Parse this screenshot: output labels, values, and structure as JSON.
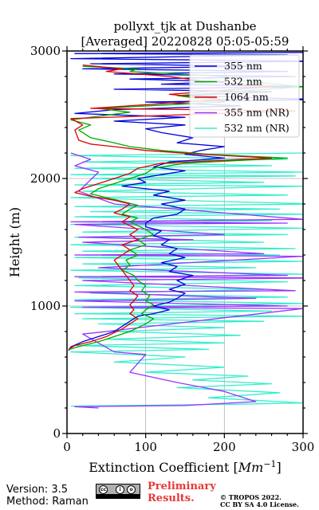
{
  "chart_data": {
    "type": "line",
    "title_lines": [
      "pollyxt_tjk at Dushanbe",
      "[Averaged] 20220828 05:05-05:59"
    ],
    "xlabel_main": "Extinction Coefficient [",
    "xlabel_unit": "Mm",
    "xlabel_exp": "−1",
    "xlabel_close": "]",
    "ylabel": "Height (m)",
    "xlim": [
      0,
      300
    ],
    "ylim": [
      0,
      3000
    ],
    "xticks": [
      0,
      100,
      200,
      300
    ],
    "yticks": [
      0,
      1000,
      2000,
      3000
    ],
    "grid": true,
    "legend_position": "top-right",
    "series": [
      {
        "name": "355 nm",
        "color": "#0000dd",
        "points": [
          [
            350,
            2990
          ],
          [
            10,
            2980
          ],
          [
            280,
            2970
          ],
          [
            5,
            2940
          ],
          [
            320,
            2920
          ],
          [
            30,
            2900
          ],
          [
            240,
            2880
          ],
          [
            20,
            2860
          ],
          [
            280,
            2840
          ],
          [
            60,
            2820
          ],
          [
            290,
            2800
          ],
          [
            80,
            2780
          ],
          [
            200,
            2760
          ],
          [
            120,
            2740
          ],
          [
            300,
            2720
          ],
          [
            60,
            2700
          ],
          [
            260,
            2680
          ],
          [
            150,
            2650
          ],
          [
            320,
            2620
          ],
          [
            100,
            2600
          ],
          [
            220,
            2570
          ],
          [
            60,
            2540
          ],
          [
            10,
            2510
          ],
          [
            150,
            2480
          ],
          [
            60,
            2450
          ],
          [
            150,
            2420
          ],
          [
            100,
            2390
          ],
          [
            120,
            2360
          ],
          [
            160,
            2320
          ],
          [
            140,
            2280
          ],
          [
            200,
            2250
          ],
          [
            170,
            2220
          ],
          [
            150,
            2190
          ],
          [
            200,
            2160
          ],
          [
            130,
            2130
          ],
          [
            110,
            2090
          ],
          [
            150,
            2060
          ],
          [
            120,
            2030
          ],
          [
            90,
            2000
          ],
          [
            100,
            1970
          ],
          [
            70,
            1940
          ],
          [
            130,
            1900
          ],
          [
            110,
            1870
          ],
          [
            150,
            1830
          ],
          [
            120,
            1800
          ],
          [
            150,
            1760
          ],
          [
            140,
            1720
          ],
          [
            110,
            1690
          ],
          [
            100,
            1650
          ],
          [
            100,
            1620
          ],
          [
            120,
            1590
          ],
          [
            110,
            1550
          ],
          [
            130,
            1520
          ],
          [
            120,
            1480
          ],
          [
            140,
            1450
          ],
          [
            130,
            1410
          ],
          [
            150,
            1380
          ],
          [
            120,
            1340
          ],
          [
            140,
            1310
          ],
          [
            130,
            1270
          ],
          [
            160,
            1240
          ],
          [
            140,
            1200
          ],
          [
            150,
            1170
          ],
          [
            130,
            1130
          ],
          [
            150,
            1100
          ],
          [
            140,
            1060
          ],
          [
            130,
            1030
          ],
          [
            110,
            1000
          ],
          [
            130,
            970
          ],
          [
            110,
            940
          ],
          [
            90,
            920
          ],
          [
            80,
            880
          ],
          [
            70,
            840
          ],
          [
            60,
            800
          ],
          [
            40,
            760
          ],
          [
            20,
            720
          ],
          [
            5,
            680
          ],
          [
            2,
            650
          ]
        ]
      },
      {
        "name": "532 nm",
        "color": "#00aa00",
        "points": [
          [
            20,
            2880
          ],
          [
            90,
            2860
          ],
          [
            80,
            2840
          ],
          [
            200,
            2800
          ],
          [
            230,
            2760
          ],
          [
            300,
            2720
          ],
          [
            140,
            2650
          ],
          [
            200,
            2600
          ],
          [
            40,
            2550
          ],
          [
            80,
            2520
          ],
          [
            5,
            2460
          ],
          [
            30,
            2420
          ],
          [
            15,
            2380
          ],
          [
            30,
            2320
          ],
          [
            60,
            2280
          ],
          [
            80,
            2250
          ],
          [
            120,
            2220
          ],
          [
            180,
            2190
          ],
          [
            280,
            2160
          ],
          [
            150,
            2120
          ],
          [
            110,
            2080
          ],
          [
            100,
            2040
          ],
          [
            80,
            2000
          ],
          [
            60,
            1960
          ],
          [
            40,
            1920
          ],
          [
            30,
            1880
          ],
          [
            50,
            1850
          ],
          [
            70,
            1820
          ],
          [
            90,
            1790
          ],
          [
            80,
            1760
          ],
          [
            70,
            1720
          ],
          [
            90,
            1690
          ],
          [
            80,
            1660
          ],
          [
            90,
            1630
          ],
          [
            100,
            1600
          ],
          [
            110,
            1560
          ],
          [
            90,
            1520
          ],
          [
            100,
            1480
          ],
          [
            80,
            1440
          ],
          [
            90,
            1400
          ],
          [
            75,
            1360
          ],
          [
            80,
            1320
          ],
          [
            70,
            1280
          ],
          [
            85,
            1240
          ],
          [
            90,
            1200
          ],
          [
            100,
            1160
          ],
          [
            95,
            1120
          ],
          [
            105,
            1080
          ],
          [
            100,
            1040
          ],
          [
            110,
            1010
          ],
          [
            100,
            970
          ],
          [
            95,
            940
          ],
          [
            110,
            900
          ],
          [
            100,
            860
          ],
          [
            90,
            830
          ],
          [
            80,
            800
          ],
          [
            60,
            760
          ],
          [
            40,
            720
          ],
          [
            20,
            690
          ],
          [
            3,
            660
          ]
        ]
      },
      {
        "name": "1064 nm",
        "color": "#dd0000",
        "points": [
          [
            20,
            2890
          ],
          [
            70,
            2860
          ],
          [
            50,
            2840
          ],
          [
            130,
            2800
          ],
          [
            180,
            2760
          ],
          [
            260,
            2720
          ],
          [
            130,
            2660
          ],
          [
            200,
            2620
          ],
          [
            30,
            2550
          ],
          [
            290,
            2530
          ],
          [
            5,
            2470
          ],
          [
            20,
            2420
          ],
          [
            10,
            2380
          ],
          [
            15,
            2300
          ],
          [
            30,
            2270
          ],
          [
            60,
            2250
          ],
          [
            100,
            2220
          ],
          [
            170,
            2190
          ],
          [
            260,
            2160
          ],
          [
            120,
            2120
          ],
          [
            90,
            2080
          ],
          [
            80,
            2040
          ],
          [
            60,
            2000
          ],
          [
            40,
            1960
          ],
          [
            20,
            1920
          ],
          [
            10,
            1890
          ],
          [
            30,
            1860
          ],
          [
            60,
            1830
          ],
          [
            80,
            1800
          ],
          [
            70,
            1760
          ],
          [
            60,
            1730
          ],
          [
            80,
            1700
          ],
          [
            70,
            1660
          ],
          [
            80,
            1630
          ],
          [
            90,
            1600
          ],
          [
            80,
            1560
          ],
          [
            90,
            1520
          ],
          [
            70,
            1480
          ],
          [
            80,
            1440
          ],
          [
            70,
            1400
          ],
          [
            60,
            1360
          ],
          [
            65,
            1320
          ],
          [
            70,
            1280
          ],
          [
            75,
            1240
          ],
          [
            80,
            1200
          ],
          [
            85,
            1160
          ],
          [
            80,
            1120
          ],
          [
            90,
            1080
          ],
          [
            85,
            1040
          ],
          [
            80,
            1010
          ],
          [
            85,
            970
          ],
          [
            80,
            940
          ],
          [
            90,
            900
          ],
          [
            80,
            860
          ],
          [
            70,
            820
          ],
          [
            60,
            790
          ],
          [
            50,
            760
          ],
          [
            30,
            720
          ],
          [
            10,
            690
          ],
          [
            2,
            660
          ]
        ]
      },
      {
        "name": "355 nm (NR)",
        "color": "#9933ff",
        "points": [
          [
            5,
            2200
          ],
          [
            30,
            2150
          ],
          [
            10,
            2100
          ],
          [
            40,
            2050
          ],
          [
            15,
            1900
          ],
          [
            60,
            1800
          ],
          [
            300,
            1680
          ],
          [
            5,
            1660
          ],
          [
            280,
            1650
          ],
          [
            10,
            1640
          ],
          [
            200,
            1560
          ],
          [
            15,
            1540
          ],
          [
            160,
            1520
          ],
          [
            20,
            1500
          ],
          [
            250,
            1410
          ],
          [
            10,
            1400
          ],
          [
            300,
            1390
          ],
          [
            40,
            1300
          ],
          [
            280,
            1240
          ],
          [
            10,
            1230
          ],
          [
            320,
            1220
          ],
          [
            20,
            1200
          ],
          [
            290,
            1120
          ],
          [
            10,
            1110
          ],
          [
            240,
            1060
          ],
          [
            10,
            1040
          ],
          [
            280,
            1000
          ],
          [
            20,
            990
          ],
          [
            300,
            980
          ],
          [
            50,
            800
          ],
          [
            20,
            780
          ],
          [
            60,
            640
          ],
          [
            100,
            620
          ],
          [
            80,
            480
          ],
          [
            140,
            400
          ],
          [
            200,
            330
          ],
          [
            240,
            250
          ],
          [
            150,
            220
          ],
          [
            10,
            210
          ],
          [
            40,
            200
          ]
        ]
      },
      {
        "name": "532 nm (NR)",
        "color": "#33eecc",
        "points": [
          [
            300,
            2200
          ],
          [
            5,
            2180
          ],
          [
            280,
            2150
          ],
          [
            20,
            2130
          ],
          [
            260,
            2100
          ],
          [
            10,
            2080
          ],
          [
            300,
            2050
          ],
          [
            5,
            2030
          ],
          [
            290,
            2020
          ],
          [
            30,
            2000
          ],
          [
            250,
            1970
          ],
          [
            10,
            1950
          ],
          [
            300,
            1940
          ],
          [
            20,
            1900
          ],
          [
            280,
            1870
          ],
          [
            5,
            1850
          ],
          [
            320,
            1800
          ],
          [
            10,
            1780
          ],
          [
            270,
            1760
          ],
          [
            30,
            1740
          ],
          [
            300,
            1720
          ],
          [
            10,
            1700
          ],
          [
            260,
            1670
          ],
          [
            5,
            1640
          ],
          [
            300,
            1610
          ],
          [
            20,
            1580
          ],
          [
            280,
            1560
          ],
          [
            10,
            1540
          ],
          [
            250,
            1500
          ],
          [
            5,
            1480
          ],
          [
            290,
            1450
          ],
          [
            20,
            1430
          ],
          [
            270,
            1400
          ],
          [
            10,
            1380
          ],
          [
            300,
            1350
          ],
          [
            20,
            1330
          ],
          [
            240,
            1300
          ],
          [
            5,
            1280
          ],
          [
            300,
            1250
          ],
          [
            15,
            1220
          ],
          [
            280,
            1190
          ],
          [
            10,
            1160
          ],
          [
            250,
            1130
          ],
          [
            30,
            1100
          ],
          [
            280,
            1070
          ],
          [
            10,
            1050
          ],
          [
            300,
            1020
          ],
          [
            5,
            990
          ],
          [
            260,
            960
          ],
          [
            10,
            940
          ],
          [
            300,
            920
          ],
          [
            20,
            900
          ],
          [
            250,
            880
          ],
          [
            40,
            860
          ],
          [
            200,
            830
          ],
          [
            60,
            800
          ],
          [
            220,
            770
          ],
          [
            50,
            740
          ],
          [
            200,
            710
          ],
          [
            10,
            690
          ],
          [
            180,
            660
          ],
          [
            5,
            640
          ],
          [
            150,
            600
          ],
          [
            60,
            560
          ],
          [
            200,
            520
          ],
          [
            100,
            480
          ],
          [
            230,
            450
          ],
          [
            160,
            420
          ],
          [
            260,
            390
          ],
          [
            140,
            360
          ],
          [
            270,
            320
          ],
          [
            180,
            280
          ],
          [
            300,
            240
          ],
          [
            220,
            230
          ],
          [
            5,
            215
          ]
        ]
      }
    ]
  },
  "footer": {
    "version": "Version: 3.5",
    "method": "Method: Raman",
    "prelim_line1": "Preliminary",
    "prelim_line2": "Results.",
    "copyright_line1": "© TROPOS 2022.",
    "copyright_line2": "CC BY SA 4.0 License.",
    "cc_glyph": "cc",
    "by_glyph": "i",
    "sa_glyph": "o"
  }
}
